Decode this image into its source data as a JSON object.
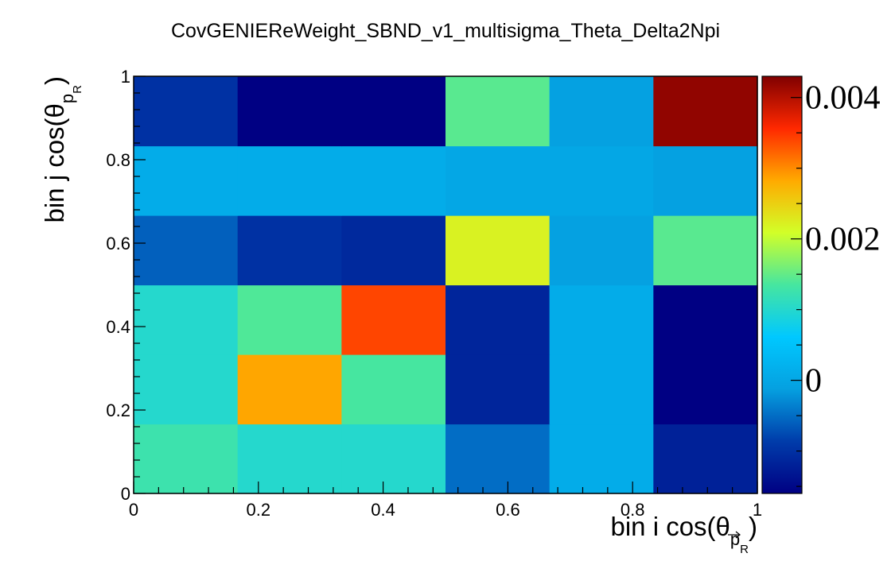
{
  "chart_data": {
    "type": "heatmap",
    "title": "CovGENIEReWeight_SBND_v1_multisigma_Theta_Delta2Npi",
    "xlabel": {
      "main": "bin i cos(θ",
      "sub": "p",
      "subsub": "R",
      "close": ")"
    },
    "ylabel": {
      "main": "bin j cos(θ",
      "sub": "p",
      "subsub": "R",
      "close": ")"
    },
    "xlim": [
      0,
      1
    ],
    "ylim": [
      0,
      1
    ],
    "x_ticks": [
      "0",
      "0.2",
      "0.4",
      "0.6",
      "0.8",
      "1"
    ],
    "y_ticks": [
      "0",
      "0.2",
      "0.4",
      "0.6",
      "0.8",
      "1"
    ],
    "x_tick_values": [
      0,
      0.2,
      0.4,
      0.6,
      0.8,
      1
    ],
    "y_tick_values": [
      0,
      0.2,
      0.4,
      0.6,
      0.8,
      1
    ],
    "x_bins": 6,
    "y_bins": 6,
    "values_rows_bottom_to_top": [
      [
        0.00125,
        0.001,
        0.001,
        -0.0005,
        0.0001,
        -0.0012
      ],
      [
        0.001,
        0.00285,
        0.00135,
        -0.00115,
        0.0001,
        -0.0016
      ],
      [
        0.001,
        0.0014,
        0.0034,
        -0.00115,
        0.0001,
        -0.0016
      ],
      [
        -0.0006,
        -0.001,
        -0.0011,
        0.0022,
        -0.0001,
        0.00145
      ],
      [
        0.0001,
        0.0001,
        0.0001,
        0.0,
        0.0,
        -0.0001
      ],
      [
        -0.001,
        -0.0016,
        -0.0016,
        0.00145,
        -0.0001,
        0.0042
      ]
    ],
    "zlim": [
      -0.0016,
      0.0043
    ],
    "colorbar_ticks": [
      "0",
      "0.002",
      "0.004"
    ],
    "colorbar_tick_values": [
      0,
      0.002,
      0.004
    ],
    "colormap": "jet",
    "grid": false
  }
}
